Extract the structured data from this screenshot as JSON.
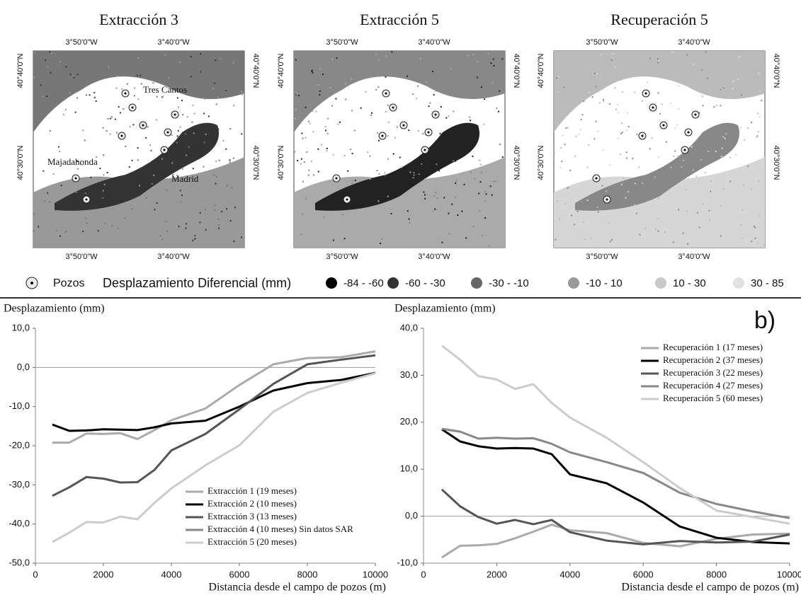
{
  "maps": [
    {
      "title": "Extracción 3",
      "labels": [
        "Tres Cantos",
        "Majadahonda",
        "Madrid"
      ]
    },
    {
      "title": "Extracción 5"
    },
    {
      "title": "Recuperación 5"
    }
  ],
  "map_axes": {
    "lon": [
      "3°50'0\"W",
      "3°40'0\"W"
    ],
    "lat": [
      "40°40'0\"N",
      "40°30'0\"N"
    ]
  },
  "map_legend": {
    "wells": "Pozos",
    "title": "Desplazamiento Diferencial (mm)",
    "classes": [
      {
        "label": "-84 - -60",
        "color": "#000000"
      },
      {
        "label": "-60 - -30",
        "color": "#333333"
      },
      {
        "label": "-30 - -10",
        "color": "#666666"
      },
      {
        "label": "-10 - 10",
        "color": "#999999"
      },
      {
        "label": "10 - 30",
        "color": "#c8c8c8"
      },
      {
        "label": "30 - 85",
        "color": "#e2e2e2"
      }
    ]
  },
  "panel_label": "b)",
  "chart_data": [
    {
      "type": "line",
      "y_label": "Desplazamiento (mm)",
      "x_label": "Distancia desde el campo de pozos (m)",
      "x": [
        500,
        1000,
        1500,
        2000,
        2500,
        3000,
        3500,
        4000,
        5000,
        6000,
        7000,
        8000,
        9000,
        10000
      ],
      "xlim": [
        0,
        10000
      ],
      "xticks": [
        0,
        2000,
        4000,
        6000,
        8000,
        10000
      ],
      "ylim": [
        -50,
        10
      ],
      "yticks": [
        {
          "value": 10,
          "label": "10,0"
        },
        {
          "value": 0,
          "label": "0,0"
        },
        {
          "value": -10,
          "label": "-10,0"
        },
        {
          "value": -20,
          "label": "-20,0"
        },
        {
          "value": -30,
          "label": "-30,0"
        },
        {
          "value": -40,
          "label": "-40,0"
        },
        {
          "value": -50,
          "label": "-50,0"
        }
      ],
      "series": [
        {
          "name": "Extracción 1 (19 meses)",
          "color": "#aaaaaa",
          "values": [
            -19.2,
            -19.2,
            -16.9,
            -17,
            -16.8,
            -18.3,
            -16,
            -13.5,
            -10.5,
            -4.5,
            0.8,
            2.4,
            2.6,
            4.1
          ]
        },
        {
          "name": "Extracción 2 (10 meses)",
          "color": "#000000",
          "values": [
            -14.6,
            -16.2,
            -16.1,
            -15.8,
            -15.9,
            -16,
            -15.3,
            -14.3,
            -13.6,
            -10,
            -5.9,
            -4,
            -3.2,
            -1.4
          ]
        },
        {
          "name": "Extracción 3 (13 meses)",
          "color": "#555555",
          "values": [
            -32.8,
            -30.6,
            -28,
            -28.4,
            -29.4,
            -29.3,
            -26.2,
            -21.2,
            -17,
            -10.7,
            -4.2,
            0.8,
            2,
            3.1
          ]
        },
        {
          "name": "Extracción 4 (10 meses) Sin datos SAR",
          "color": "#888888",
          "values": [
            null,
            null,
            null,
            null,
            null,
            null,
            null,
            null,
            null,
            null,
            null,
            null,
            null,
            null
          ]
        },
        {
          "name": "Extracción 5 (20 meses)",
          "color": "#cccccc",
          "values": [
            -44.6,
            -42.2,
            -39.5,
            -39.6,
            -38.1,
            -38.8,
            -34.6,
            -30.9,
            -25,
            -19.9,
            -11.3,
            -6.5,
            -3.9,
            -1.5
          ]
        }
      ]
    },
    {
      "type": "line",
      "y_label": "Desplazamiento (mm)",
      "x_label": "Distancia desde el campo de pozos (m)",
      "x": [
        500,
        1000,
        1500,
        2000,
        2500,
        3000,
        3500,
        4000,
        5000,
        6000,
        7000,
        8000,
        9000,
        10000
      ],
      "xlim": [
        0,
        10000
      ],
      "xticks": [
        0,
        2000,
        4000,
        6000,
        8000,
        10000
      ],
      "ylim": [
        -10,
        40
      ],
      "yticks": [
        {
          "value": 40,
          "label": "40,0"
        },
        {
          "value": 30,
          "label": "30,0"
        },
        {
          "value": 20,
          "label": "20,0"
        },
        {
          "value": 10,
          "label": "10,0"
        },
        {
          "value": 0,
          "label": "0,0"
        },
        {
          "value": -10,
          "label": "-10,0"
        }
      ],
      "series": [
        {
          "name": "Recuperación 1 (17 meses)",
          "color": "#aaaaaa",
          "values": [
            -8.8,
            -6.3,
            -6.2,
            -5.9,
            -4.7,
            -3.3,
            -1.8,
            -3,
            -3.6,
            -5.7,
            -6.4,
            -4.8,
            -3.9,
            -3.7
          ]
        },
        {
          "name": "Recuperación 2 (37 meses)",
          "color": "#000000",
          "values": [
            18.5,
            15.9,
            14.9,
            14.4,
            14.5,
            14.4,
            13.2,
            8.9,
            7,
            2.9,
            -2.2,
            -4.6,
            -5.5,
            -5.8
          ]
        },
        {
          "name": "Recuperación 3 (22 meses)",
          "color": "#555555",
          "values": [
            5.7,
            2.1,
            -0.2,
            -1.6,
            -0.8,
            -1.7,
            -0.8,
            -3.4,
            -5.2,
            -6,
            -5.3,
            -5.6,
            -5.4,
            -3.9
          ]
        },
        {
          "name": "Recuperación 4 (27 meses)",
          "color": "#888888",
          "values": [
            18.6,
            18,
            16.5,
            16.7,
            16.5,
            16.6,
            15.4,
            13.6,
            11.5,
            9.2,
            5,
            2.6,
            1,
            -0.4
          ]
        },
        {
          "name": "Recuperación 5 (60 meses)",
          "color": "#cccccc",
          "values": [
            36.3,
            33.3,
            29.8,
            29.1,
            27.1,
            28.1,
            24.1,
            21,
            16.7,
            11.5,
            6,
            1.2,
            -0.2,
            -1.6
          ]
        }
      ]
    }
  ]
}
